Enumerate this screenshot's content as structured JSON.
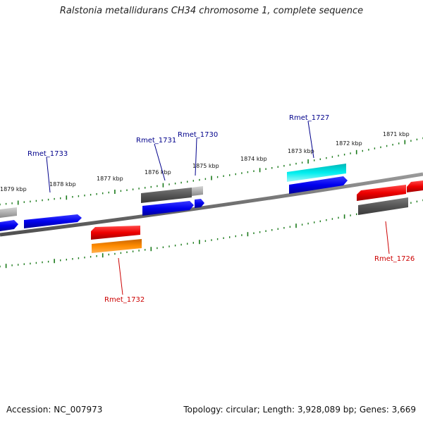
{
  "title": "Ralstonia metallidurans CH34 chromosome 1, complete sequence",
  "footer": {
    "accession": "Accession: NC_007973",
    "summary": "Topology: circular; Length: 3,928,089 bp; Genes: 3,669"
  },
  "scale_labels": [
    "1879 kbp",
    "1878 kbp",
    "1877 kbp",
    "1876 kbp",
    "1875 kbp",
    "1874 kbp",
    "1873 kbp",
    "1872 kbp",
    "1871 kbp"
  ],
  "gene_labels": {
    "rmet_1733": "Rmet_1733",
    "rmet_1731": "Rmet_1731",
    "rmet_1730": "Rmet_1730",
    "rmet_1727": "Rmet_1727",
    "rmet_1732": "Rmet_1732",
    "rmet_1726": "Rmet_1726"
  },
  "colors": {
    "forward_label": "#00008b",
    "reverse_label": "#cc0000",
    "tick": "#1a7a1a",
    "blue": "#0000ee",
    "red": "#ee0000",
    "orange": "#ff8c00",
    "cyan": "#00eeee",
    "dark_gray": "#555555",
    "light_gray": "#aaaaaa"
  }
}
